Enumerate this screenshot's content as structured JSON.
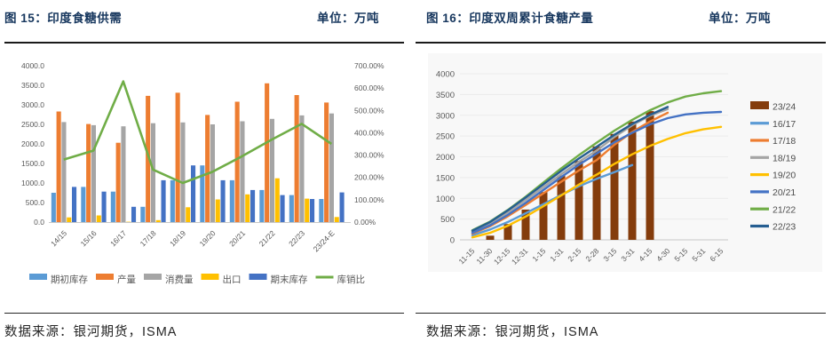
{
  "left_panel": {
    "title": "图 15：印度食糖供需",
    "unit": "单位：万吨",
    "source": "数据来源：银河期货，ISMA"
  },
  "right_panel": {
    "title": "图 16：印度双周累计食糖产量",
    "unit": "单位：万吨",
    "source": "数据来源：银河期货，ISMA"
  },
  "colors": {
    "title_navy": "#17375E",
    "axis_text": "#595959",
    "divider": "#1a1a1a",
    "gridline": "#ebebeb",
    "axis_line": "#c8c8c8",
    "plot_backdrop": "#f8f8f8"
  },
  "chart_data": [
    {
      "type": "bar",
      "title": "图 15：印度食糖供需",
      "unit": "万吨",
      "categories": [
        "14/15",
        "15/16",
        "16/17",
        "17/18",
        "18/19",
        "19/20",
        "20/21",
        "21/22",
        "22/23",
        "23/24-E"
      ],
      "y_left": {
        "min": 0,
        "max": 4000,
        "step": 500,
        "labels": [
          "0.0",
          "500.0",
          "1000.0",
          "1500.0",
          "2000.0",
          "2500.0",
          "3000.0",
          "3500.0",
          "4000.0"
        ]
      },
      "y_right": {
        "min": 0,
        "max": 700,
        "step": 100,
        "labels": [
          "0.00%",
          "100.00%",
          "200.00%",
          "300.00%",
          "400.00%",
          "500.00%",
          "600.00%",
          "700.00%"
        ]
      },
      "grid": false,
      "legend_position": "bottom",
      "series": [
        {
          "name": "期初库存",
          "kind": "bar",
          "color": "#5B9BD5",
          "values": [
            750,
            900,
            780,
            390,
            1070,
            1450,
            1070,
            820,
            690,
            590
          ]
        },
        {
          "name": "产量",
          "kind": "bar",
          "color": "#ED7D31",
          "values": [
            2830,
            2510,
            2030,
            3230,
            3310,
            2740,
            3080,
            3550,
            3250,
            3060
          ]
        },
        {
          "name": "消费量",
          "kind": "bar",
          "color": "#A5A5A5",
          "values": [
            2560,
            2480,
            2450,
            2530,
            2550,
            2500,
            2580,
            2640,
            2730,
            2780
          ]
        },
        {
          "name": "出口",
          "kind": "bar",
          "color": "#FFC000",
          "values": [
            120,
            170,
            10,
            50,
            380,
            580,
            710,
            1120,
            600,
            130
          ]
        },
        {
          "name": "期末库存",
          "kind": "bar",
          "color": "#4472C4",
          "values": [
            900,
            780,
            390,
            1070,
            1450,
            1070,
            820,
            690,
            590,
            760
          ]
        },
        {
          "name": "库销比",
          "kind": "line",
          "axis": "right",
          "unit": "%",
          "color": "#70AD47",
          "values": [
            280,
            320,
            630,
            235,
            175,
            225,
            295,
            370,
            440,
            350
          ]
        }
      ]
    },
    {
      "type": "line",
      "title": "图 16：印度双周累计食糖产量",
      "unit": "万吨",
      "categories": [
        "11-15",
        "11-30",
        "12-15",
        "12-31",
        "1-15",
        "1-31",
        "2-15",
        "2-28",
        "3-15",
        "3-31",
        "4-15",
        "4-30",
        "5-15",
        "5-31",
        "6-15"
      ],
      "y_left": {
        "min": 0,
        "max": 4000,
        "step": 500,
        "labels": [
          "0",
          "500",
          "1000",
          "1500",
          "2000",
          "2500",
          "3000",
          "3500",
          "4000"
        ]
      },
      "grid": true,
      "legend_position": "right",
      "series": [
        {
          "name": "23/24",
          "kind": "bar",
          "color": "#843C0C",
          "values": [
            null,
            100,
            380,
            730,
            1150,
            1550,
            1900,
            2250,
            2550,
            2850,
            3100,
            null,
            null,
            null,
            null
          ]
        },
        {
          "name": "16/17",
          "kind": "line",
          "color": "#5B9BD5",
          "values": [
            110,
            250,
            430,
            640,
            860,
            1080,
            1290,
            1470,
            1630,
            1800,
            null,
            null,
            null,
            null,
            null
          ]
        },
        {
          "name": "17/18",
          "kind": "line",
          "color": "#ED7D31",
          "values": [
            150,
            330,
            570,
            840,
            1120,
            1400,
            1670,
            1920,
            2290,
            2600,
            2850,
            3060,
            null,
            null,
            null
          ]
        },
        {
          "name": "18/19",
          "kind": "line",
          "color": "#A5A5A5",
          "values": [
            200,
            400,
            660,
            960,
            1270,
            1580,
            1880,
            2150,
            2480,
            2760,
            2990,
            3150,
            null,
            null,
            null
          ]
        },
        {
          "name": "19/20",
          "kind": "line",
          "color": "#FFC000",
          "values": [
            60,
            170,
            340,
            560,
            810,
            1070,
            1330,
            1570,
            1830,
            2060,
            2260,
            2430,
            2570,
            2660,
            2720
          ]
        },
        {
          "name": "20/21",
          "kind": "line",
          "color": "#4472C4",
          "values": [
            170,
            350,
            600,
            890,
            1200,
            1510,
            1810,
            2080,
            2350,
            2580,
            2780,
            2930,
            3020,
            3060,
            3080
          ]
        },
        {
          "name": "21/22",
          "kind": "line",
          "color": "#70AD47",
          "values": [
            230,
            440,
            720,
            1040,
            1380,
            1720,
            2040,
            2340,
            2630,
            2890,
            3120,
            3310,
            3450,
            3530,
            3580
          ]
        },
        {
          "name": "22/23",
          "kind": "line",
          "color": "#255E91",
          "values": [
            220,
            430,
            710,
            1020,
            1340,
            1660,
            1960,
            2240,
            2530,
            2790,
            3010,
            3200,
            null,
            null,
            null
          ]
        }
      ]
    }
  ]
}
